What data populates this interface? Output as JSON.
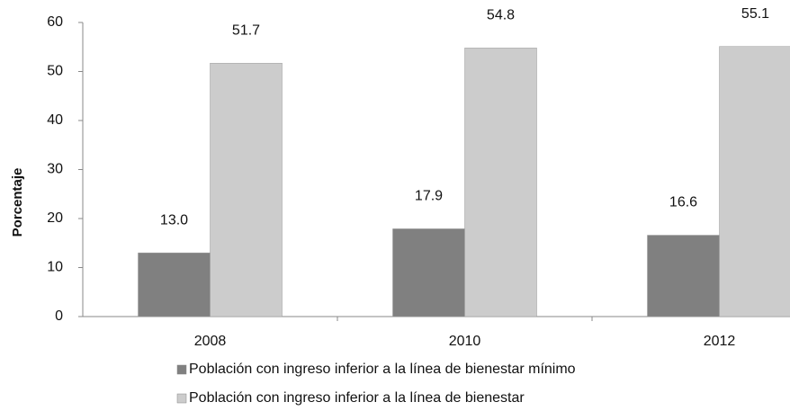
{
  "chart_data": {
    "type": "bar",
    "y_label": "Porcentaje",
    "categories": [
      "2008",
      "2010",
      "2012"
    ],
    "series": [
      {
        "name": "Población con ingreso inferior a la línea de bienestar mínimo",
        "color": "#808080",
        "values": [
          13.0,
          17.9,
          16.6
        ],
        "value_labels": [
          "13.0",
          "17.9",
          "16.6"
        ]
      },
      {
        "name": "Población con ingreso inferior a la línea de bienestar",
        "color": "#cccccc",
        "values": [
          51.7,
          54.8,
          55.1
        ],
        "value_labels": [
          "51.7",
          "54.8",
          "55.1"
        ]
      }
    ],
    "ylim": [
      0,
      60
    ],
    "yticks": [
      0,
      10,
      20,
      30,
      40,
      50,
      60
    ],
    "grid": false
  }
}
